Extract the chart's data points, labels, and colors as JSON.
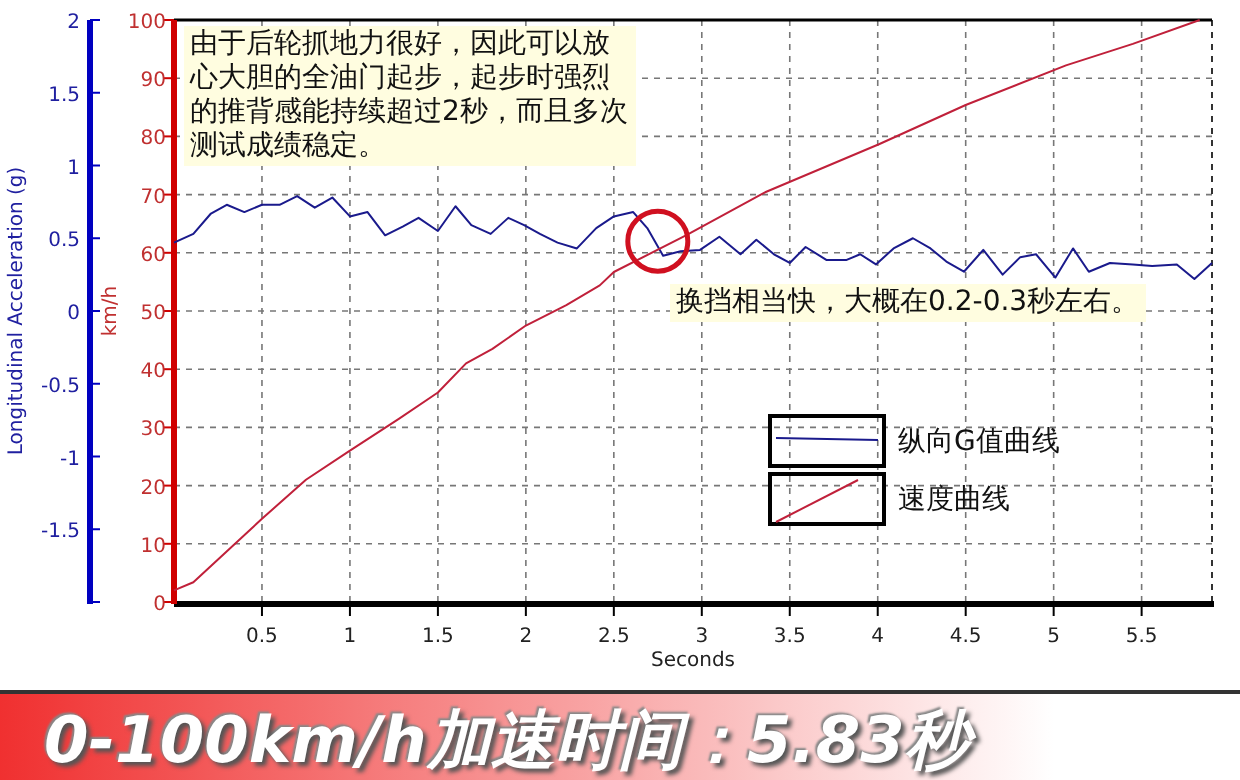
{
  "chart_data": {
    "type": "line",
    "title": "0-100km/h加速时间：5.83秒",
    "xlabel": "Seconds",
    "ylabel": "km/h",
    "y2label": "Longitudinal Acceleration (g)",
    "xlim": [
      0,
      5.9
    ],
    "xticks": [
      0.5,
      1,
      1.5,
      2,
      2.5,
      3,
      3.5,
      4,
      4.5,
      5,
      5.5
    ],
    "ylim": [
      0,
      100
    ],
    "yticks": [
      0,
      10,
      20,
      30,
      40,
      50,
      60,
      70,
      80,
      90,
      100
    ],
    "y2lim": [
      -2,
      2
    ],
    "y2ticks": [
      {
        "value": -2,
        "label": null
      },
      -1.5,
      -1,
      -0.5,
      0,
      0.5,
      1,
      1.5,
      2
    ],
    "grid": true,
    "legend": "right",
    "annotations": [
      "由于后轮抓地力很好，因此可以放心大胆的全油门起步，起步时强烈的推背感能持续超过2秒，而且多次测试成绩稳定。",
      "换挡相当快，大概在0.2-0.3秒左右。"
    ],
    "series": [
      {
        "name": "纵向G值曲线",
        "color": "#1a1a8c",
        "axis": "y2",
        "x": [
          0,
          0.11,
          0.21,
          0.3,
          0.4,
          0.5,
          0.6,
          0.7,
          0.8,
          0.9,
          1.0,
          1.1,
          1.2,
          1.3,
          1.39,
          1.5,
          1.6,
          1.69,
          1.8,
          1.9,
          1.99,
          2.08,
          2.18,
          2.29,
          2.4,
          2.5,
          2.61,
          2.69,
          2.78,
          2.88,
          2.99,
          3.1,
          3.22,
          3.31,
          3.41,
          3.5,
          3.59,
          3.71,
          3.82,
          3.9,
          3.99,
          4.09,
          4.2,
          4.3,
          4.39,
          4.49,
          4.6,
          4.71,
          4.81,
          4.9,
          5.01,
          5.11,
          5.2,
          5.32,
          5.45,
          5.56,
          5.7,
          5.8,
          5.9
        ],
        "values": [
          0.47,
          0.53,
          0.67,
          0.73,
          0.68,
          0.73,
          0.73,
          0.79,
          0.71,
          0.78,
          0.65,
          0.68,
          0.52,
          0.58,
          0.64,
          0.55,
          0.72,
          0.59,
          0.53,
          0.64,
          0.59,
          0.53,
          0.47,
          0.43,
          0.57,
          0.65,
          0.68,
          0.57,
          0.38,
          0.41,
          0.42,
          0.51,
          0.39,
          0.49,
          0.39,
          0.33,
          0.44,
          0.35,
          0.35,
          0.39,
          0.32,
          0.43,
          0.5,
          0.43,
          0.34,
          0.27,
          0.42,
          0.25,
          0.37,
          0.39,
          0.23,
          0.43,
          0.27,
          0.33,
          0.32,
          0.31,
          0.32,
          0.22,
          0.33
        ]
      },
      {
        "name": "速度曲线",
        "color": "#c0203a",
        "x": [
          0,
          0.11,
          0.5,
          0.75,
          1.0,
          1.28,
          1.5,
          1.66,
          1.81,
          2.0,
          2.23,
          2.42,
          2.5,
          2.91,
          3.36,
          4.01,
          4.5,
          5.07,
          5.45,
          5.83
        ],
        "values": [
          2,
          3.4,
          14.3,
          21,
          26,
          31.5,
          36,
          41,
          43.5,
          47.5,
          51,
          54.4,
          56.7,
          63,
          70.4,
          78.7,
          85.4,
          92.2,
          95.9,
          100
        ]
      }
    ]
  }
}
